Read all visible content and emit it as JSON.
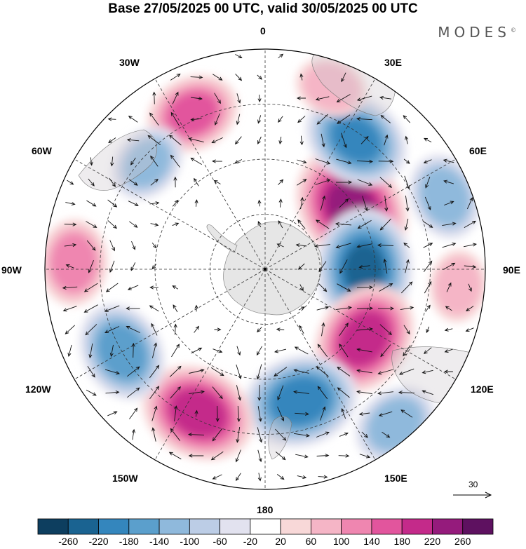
{
  "title": "Base 27/05/2025 00 UTC, valid 30/05/2025 00 UTC",
  "logo_text": "MODES",
  "logo_mark": "©",
  "longitude_labels": {
    "n": "0",
    "ne30": "30E",
    "ne60": "60E",
    "e90": "90E",
    "se120": "120E",
    "se150": "150E",
    "s180": "180",
    "sw150": "150W",
    "sw120": "120W",
    "w90": "90W",
    "nw60": "60W",
    "nw30": "30W"
  },
  "reference_vector": {
    "label": "30"
  },
  "colorbar": {
    "colors": [
      "#0d3e5f",
      "#1a6391",
      "#3486bd",
      "#5b9fcc",
      "#8fb9dc",
      "#bccde6",
      "#e2e2ef",
      "#ffffff",
      "#f8d8d8",
      "#f5b5c6",
      "#ef86b0",
      "#e2559d",
      "#c42a8a",
      "#951b7c",
      "#5e1160"
    ],
    "labels": [
      "-260",
      "-220",
      "-180",
      "-140",
      "-100",
      "-60",
      "-20",
      "20",
      "60",
      "100",
      "140",
      "180",
      "220",
      "260"
    ]
  },
  "anomaly_centers": [
    {
      "lon": 55,
      "colat_frac": 0.48,
      "value": 240
    },
    {
      "lon": 90,
      "colat_frac": 0.45,
      "value": -220
    },
    {
      "lon": 35,
      "colat_frac": 0.72,
      "value": -180
    },
    {
      "lon": 125,
      "colat_frac": 0.55,
      "value": 200
    },
    {
      "lon": 165,
      "colat_frac": 0.62,
      "value": -200
    },
    {
      "lon": -155,
      "colat_frac": 0.72,
      "value": 200
    },
    {
      "lon": -120,
      "colat_frac": 0.75,
      "value": -160
    },
    {
      "lon": -88,
      "colat_frac": 0.87,
      "value": 120
    },
    {
      "lon": -25,
      "colat_frac": 0.78,
      "value": 140
    },
    {
      "lon": -48,
      "colat_frac": 0.72,
      "value": -100
    },
    {
      "lon": 140,
      "colat_frac": 0.92,
      "value": -120
    },
    {
      "lon": 68,
      "colat_frac": 0.88,
      "value": -120
    },
    {
      "lon": 20,
      "colat_frac": 0.88,
      "value": 80
    },
    {
      "lon": 95,
      "colat_frac": 0.88,
      "value": 80
    }
  ]
}
